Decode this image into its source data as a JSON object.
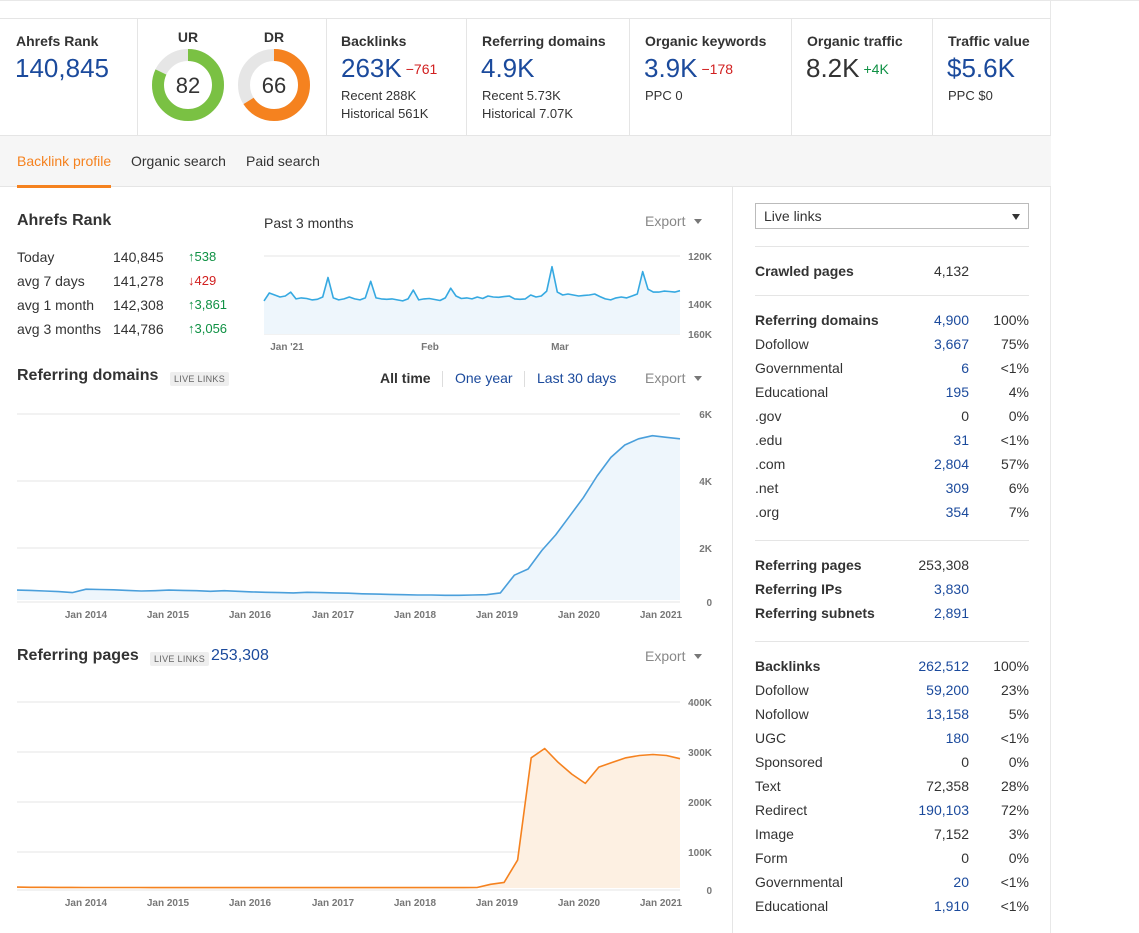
{
  "metrics": {
    "ahrefs_rank": {
      "label": "Ahrefs Rank",
      "value": "140,845"
    },
    "ur": {
      "label": "UR",
      "value": "82",
      "score": 82,
      "color": "#7ac143"
    },
    "dr": {
      "label": "DR",
      "value": "66",
      "score": 66,
      "color": "#f5821f"
    },
    "backlinks": {
      "label": "Backlinks",
      "value": "263K",
      "delta": "−761",
      "recent": "Recent 288K",
      "historical": "Historical 561K"
    },
    "referring_domains": {
      "label": "Referring domains",
      "value": "4.9K",
      "recent": "Recent 5.73K",
      "historical": "Historical 7.07K"
    },
    "organic_keywords": {
      "label": "Organic keywords",
      "value": "3.9K",
      "delta": "−178",
      "ppc": "PPC 0"
    },
    "organic_traffic": {
      "label": "Organic traffic",
      "value": "8.2K",
      "delta": "+4K"
    },
    "traffic_value": {
      "label": "Traffic value",
      "value": "$5.6K",
      "ppc": "PPC $0"
    }
  },
  "tabs": [
    "Backlink profile",
    "Organic search",
    "Paid search"
  ],
  "ahrefs_rank_section": {
    "title": "Ahrefs Rank",
    "period": "Past 3 months",
    "export": "Export",
    "rows": [
      {
        "label": "Today",
        "value": "140,845",
        "delta": "538",
        "dir": "up"
      },
      {
        "label": "avg 7 days",
        "value": "141,278",
        "delta": "429",
        "dir": "down"
      },
      {
        "label": "avg 1 month",
        "value": "142,308",
        "delta": "3,861",
        "dir": "up"
      },
      {
        "label": "avg 3 months",
        "value": "144,786",
        "delta": "3,056",
        "dir": "up"
      }
    ]
  },
  "referring_domains_section": {
    "title": "Referring domains",
    "chip": "LIVE LINKS",
    "ranges": [
      "All time",
      "One year",
      "Last 30 days"
    ],
    "export": "Export"
  },
  "referring_pages_section": {
    "title": "Referring pages",
    "chip": "LIVE LINKS",
    "count": "253,308",
    "export": "Export"
  },
  "right_panel": {
    "select_value": "Live links",
    "crawled": {
      "label": "Crawled pages",
      "value": "4,132"
    },
    "domains": [
      {
        "label": "Referring domains",
        "value": "4,900",
        "pct": "100%",
        "bold": true,
        "link": true
      },
      {
        "label": "Dofollow",
        "value": "3,667",
        "pct": "75%",
        "link": true
      },
      {
        "label": "Governmental",
        "value": "6",
        "pct": "<1%",
        "link": true
      },
      {
        "label": "Educational",
        "value": "195",
        "pct": "4%",
        "link": true
      },
      {
        "label": ".gov",
        "value": "0",
        "pct": "0%",
        "link": false
      },
      {
        "label": ".edu",
        "value": "31",
        "pct": "<1%",
        "link": true
      },
      {
        "label": ".com",
        "value": "2,804",
        "pct": "57%",
        "link": true
      },
      {
        "label": ".net",
        "value": "309",
        "pct": "6%",
        "link": true
      },
      {
        "label": ".org",
        "value": "354",
        "pct": "7%",
        "link": true
      }
    ],
    "pages": [
      {
        "label": "Referring pages",
        "value": "253,308",
        "link": false
      },
      {
        "label": "Referring IPs",
        "value": "3,830",
        "link": true
      },
      {
        "label": "Referring subnets",
        "value": "2,891",
        "link": true
      }
    ],
    "backlinks": [
      {
        "label": "Backlinks",
        "value": "262,512",
        "pct": "100%",
        "bold": true,
        "link": true
      },
      {
        "label": "Dofollow",
        "value": "59,200",
        "pct": "23%",
        "link": true
      },
      {
        "label": "Nofollow",
        "value": "13,158",
        "pct": "5%",
        "link": true
      },
      {
        "label": "UGC",
        "value": "180",
        "pct": "<1%",
        "link": true
      },
      {
        "label": "Sponsored",
        "value": "0",
        "pct": "0%",
        "link": false
      },
      {
        "label": "Text",
        "value": "72,358",
        "pct": "28%",
        "link": false
      },
      {
        "label": "Redirect",
        "value": "190,103",
        "pct": "72%",
        "link": true
      },
      {
        "label": "Image",
        "value": "7,152",
        "pct": "3%",
        "link": false
      },
      {
        "label": "Form",
        "value": "0",
        "pct": "0%",
        "link": false
      },
      {
        "label": "Governmental",
        "value": "20",
        "pct": "<1%",
        "link": true
      },
      {
        "label": "Educational",
        "value": "1,910",
        "pct": "<1%",
        "link": true
      }
    ]
  },
  "chart_data": [
    {
      "type": "line",
      "name_ref": "ahrefs-rank-chart",
      "x_labels": [
        "Jan '21",
        "Feb",
        "Mar"
      ],
      "y_ticks": [
        "120K",
        "140K",
        "160K"
      ],
      "ylim": [
        160000,
        120000
      ],
      "color": "#36a9e1",
      "values": [
        143000,
        139000,
        140000,
        141000,
        140500,
        138500,
        142000,
        141500,
        141800,
        142500,
        142200,
        141000,
        131000,
        141500,
        142500,
        142000,
        141000,
        142000,
        142500,
        141500,
        133000,
        141500,
        142000,
        142200,
        142000,
        142500,
        143000,
        142000,
        137500,
        142500,
        142000,
        141800,
        142300,
        142800,
        141500,
        136500,
        140500,
        141800,
        141500,
        142000,
        141000,
        141800,
        140500,
        141000,
        141200,
        140800,
        140500,
        142000,
        142200,
        142000,
        140000,
        141000,
        140500,
        138000,
        125500,
        138500,
        140000,
        139500,
        140000,
        140500,
        140200,
        140000,
        139500,
        140800,
        142000,
        142500,
        141500,
        141000,
        141500,
        140500,
        139500,
        128000,
        137000,
        138500,
        138500,
        138000,
        138200,
        138500,
        137800
      ]
    },
    {
      "type": "area",
      "name_ref": "referring-domains-chart",
      "x_labels": [
        "Jan 2014",
        "Jan 2015",
        "Jan 2016",
        "Jan 2017",
        "Jan 2018",
        "Jan 2019",
        "Jan 2020",
        "Jan 2021"
      ],
      "y_ticks": [
        "6K",
        "4K",
        "2K",
        "0"
      ],
      "ylim": [
        0,
        6000
      ],
      "color": "#4a9fdb",
      "values": [
        320,
        310,
        290,
        270,
        240,
        350,
        340,
        330,
        310,
        290,
        300,
        320,
        310,
        300,
        280,
        300,
        280,
        260,
        250,
        240,
        230,
        250,
        240,
        230,
        220,
        200,
        190,
        180,
        170,
        160,
        160,
        150,
        150,
        160,
        170,
        230,
        800,
        1000,
        1600,
        2100,
        2700,
        3300,
        4000,
        4600,
        5000,
        5200,
        5300,
        5250,
        5200
      ]
    },
    {
      "type": "area",
      "name_ref": "referring-pages-chart",
      "x_labels": [
        "Jan 2014",
        "Jan 2015",
        "Jan 2016",
        "Jan 2017",
        "Jan 2018",
        "Jan 2019",
        "Jan 2020",
        "Jan 2021"
      ],
      "y_ticks": [
        "400K",
        "300K",
        "200K",
        "100K",
        "0"
      ],
      "ylim": [
        0,
        400000
      ],
      "color": "#f5821f",
      "values": [
        2000,
        1500,
        1400,
        1300,
        1200,
        1100,
        1000,
        1000,
        1000,
        1000,
        900,
        900,
        900,
        900,
        900,
        900,
        900,
        900,
        900,
        900,
        900,
        900,
        900,
        900,
        900,
        900,
        900,
        900,
        900,
        900,
        900,
        900,
        900,
        900,
        1000,
        8000,
        12000,
        60000,
        280000,
        300000,
        270000,
        245000,
        225000,
        260000,
        270000,
        280000,
        285000,
        287000,
        285000,
        278000
      ]
    }
  ]
}
